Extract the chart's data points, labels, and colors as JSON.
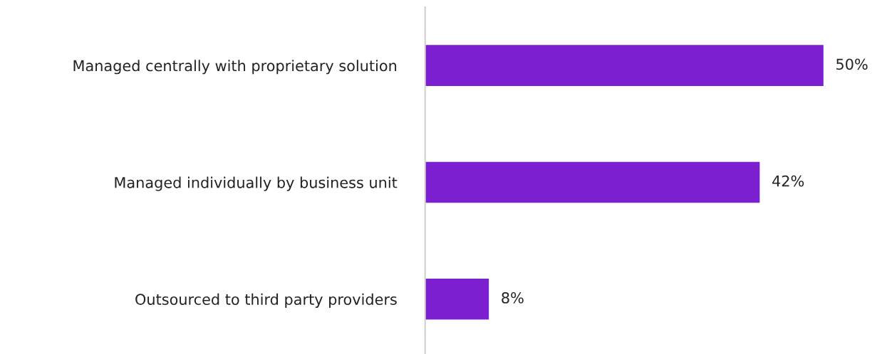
{
  "chart_data": {
    "type": "bar",
    "orientation": "horizontal",
    "categories": [
      "Managed centrally with proprietary solution",
      "Managed individually by business unit",
      "Outsourced to third party providers"
    ],
    "values": [
      50,
      42,
      8
    ],
    "value_labels": [
      "50%",
      "42%",
      "8%"
    ],
    "color": "#7b1fd0",
    "grid": false
  }
}
